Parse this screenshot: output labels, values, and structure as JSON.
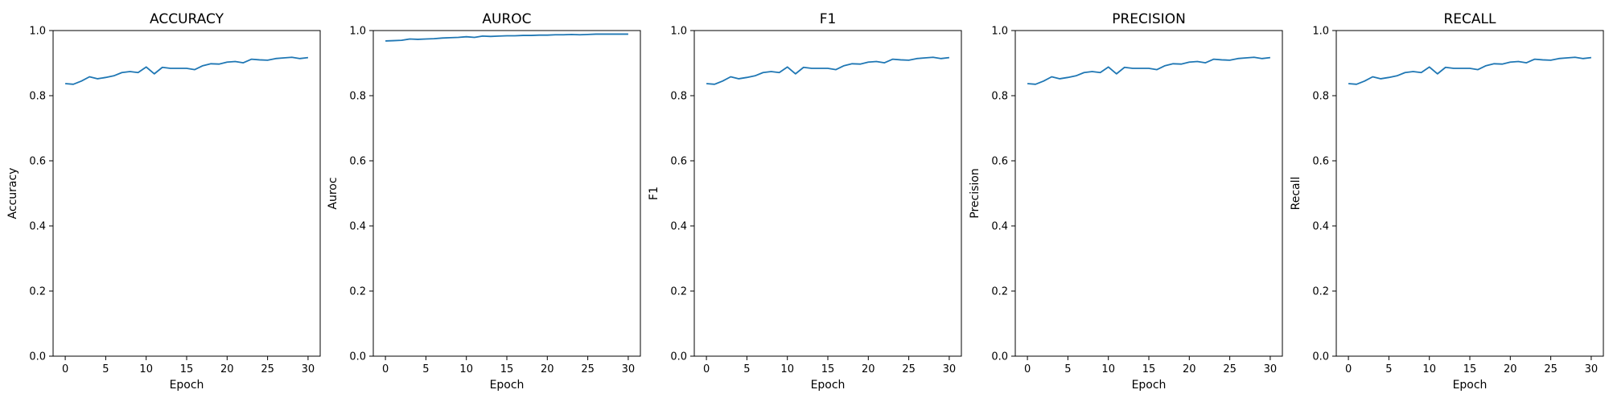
{
  "style": {
    "line_color": "#1f77b4",
    "axis_color": "#000000",
    "background": "#ffffff"
  },
  "chart_data": [
    {
      "type": "line",
      "title": "ACCURACY",
      "xlabel": "Epoch",
      "ylabel": "Accuracy",
      "xlim": [
        -1.5,
        31.5
      ],
      "ylim": [
        0.0,
        1.0
      ],
      "xticks": [
        0,
        5,
        10,
        15,
        20,
        25,
        30
      ],
      "yticks": [
        0.0,
        0.2,
        0.4,
        0.6,
        0.8,
        1.0
      ],
      "grid": false,
      "x": [
        0,
        1,
        2,
        3,
        4,
        5,
        6,
        7,
        8,
        9,
        10,
        11,
        12,
        13,
        14,
        15,
        16,
        17,
        18,
        19,
        20,
        21,
        22,
        23,
        24,
        25,
        26,
        27,
        28,
        29,
        30
      ],
      "series": [
        {
          "values": [
            0.837,
            0.835,
            0.845,
            0.858,
            0.852,
            0.856,
            0.861,
            0.871,
            0.874,
            0.871,
            0.888,
            0.867,
            0.887,
            0.884,
            0.884,
            0.884,
            0.88,
            0.892,
            0.898,
            0.897,
            0.903,
            0.905,
            0.901,
            0.912,
            0.91,
            0.909,
            0.914,
            0.916,
            0.918,
            0.914,
            0.917
          ]
        }
      ]
    },
    {
      "type": "line",
      "title": "AUROC",
      "xlabel": "Epoch",
      "ylabel": "Auroc",
      "xlim": [
        -1.5,
        31.5
      ],
      "ylim": [
        0.0,
        1.0
      ],
      "xticks": [
        0,
        5,
        10,
        15,
        20,
        25,
        30
      ],
      "yticks": [
        0.0,
        0.2,
        0.4,
        0.6,
        0.8,
        1.0
      ],
      "grid": false,
      "x": [
        0,
        1,
        2,
        3,
        4,
        5,
        6,
        7,
        8,
        9,
        10,
        11,
        12,
        13,
        14,
        15,
        16,
        17,
        18,
        19,
        20,
        21,
        22,
        23,
        24,
        25,
        26,
        27,
        28,
        29,
        30
      ],
      "series": [
        {
          "values": [
            0.968,
            0.969,
            0.97,
            0.974,
            0.973,
            0.974,
            0.975,
            0.977,
            0.978,
            0.979,
            0.981,
            0.979,
            0.983,
            0.982,
            0.983,
            0.984,
            0.984,
            0.985,
            0.985,
            0.986,
            0.986,
            0.987,
            0.987,
            0.988,
            0.987,
            0.988,
            0.989,
            0.989,
            0.989,
            0.989,
            0.989
          ]
        }
      ]
    },
    {
      "type": "line",
      "title": "F1",
      "xlabel": "Epoch",
      "ylabel": "F1",
      "xlim": [
        -1.5,
        31.5
      ],
      "ylim": [
        0.0,
        1.0
      ],
      "xticks": [
        0,
        5,
        10,
        15,
        20,
        25,
        30
      ],
      "yticks": [
        0.0,
        0.2,
        0.4,
        0.6,
        0.8,
        1.0
      ],
      "grid": false,
      "x": [
        0,
        1,
        2,
        3,
        4,
        5,
        6,
        7,
        8,
        9,
        10,
        11,
        12,
        13,
        14,
        15,
        16,
        17,
        18,
        19,
        20,
        21,
        22,
        23,
        24,
        25,
        26,
        27,
        28,
        29,
        30
      ],
      "series": [
        {
          "values": [
            0.837,
            0.835,
            0.845,
            0.858,
            0.852,
            0.856,
            0.861,
            0.871,
            0.874,
            0.871,
            0.888,
            0.867,
            0.887,
            0.884,
            0.884,
            0.884,
            0.88,
            0.892,
            0.898,
            0.897,
            0.903,
            0.905,
            0.901,
            0.912,
            0.91,
            0.909,
            0.914,
            0.916,
            0.918,
            0.914,
            0.917
          ]
        }
      ]
    },
    {
      "type": "line",
      "title": "PRECISION",
      "xlabel": "Epoch",
      "ylabel": "Precision",
      "xlim": [
        -1.5,
        31.5
      ],
      "ylim": [
        0.0,
        1.0
      ],
      "xticks": [
        0,
        5,
        10,
        15,
        20,
        25,
        30
      ],
      "yticks": [
        0.0,
        0.2,
        0.4,
        0.6,
        0.8,
        1.0
      ],
      "grid": false,
      "x": [
        0,
        1,
        2,
        3,
        4,
        5,
        6,
        7,
        8,
        9,
        10,
        11,
        12,
        13,
        14,
        15,
        16,
        17,
        18,
        19,
        20,
        21,
        22,
        23,
        24,
        25,
        26,
        27,
        28,
        29,
        30
      ],
      "series": [
        {
          "values": [
            0.837,
            0.835,
            0.845,
            0.858,
            0.852,
            0.856,
            0.861,
            0.871,
            0.874,
            0.871,
            0.888,
            0.867,
            0.887,
            0.884,
            0.884,
            0.884,
            0.88,
            0.892,
            0.898,
            0.897,
            0.903,
            0.905,
            0.901,
            0.912,
            0.91,
            0.909,
            0.914,
            0.916,
            0.918,
            0.914,
            0.917
          ]
        }
      ]
    },
    {
      "type": "line",
      "title": "RECALL",
      "xlabel": "Epoch",
      "ylabel": "Recall",
      "xlim": [
        -1.5,
        31.5
      ],
      "ylim": [
        0.0,
        1.0
      ],
      "xticks": [
        0,
        5,
        10,
        15,
        20,
        25,
        30
      ],
      "yticks": [
        0.0,
        0.2,
        0.4,
        0.6,
        0.8,
        1.0
      ],
      "grid": false,
      "x": [
        0,
        1,
        2,
        3,
        4,
        5,
        6,
        7,
        8,
        9,
        10,
        11,
        12,
        13,
        14,
        15,
        16,
        17,
        18,
        19,
        20,
        21,
        22,
        23,
        24,
        25,
        26,
        27,
        28,
        29,
        30
      ],
      "series": [
        {
          "values": [
            0.837,
            0.835,
            0.845,
            0.858,
            0.852,
            0.856,
            0.861,
            0.871,
            0.874,
            0.871,
            0.888,
            0.867,
            0.887,
            0.884,
            0.884,
            0.884,
            0.88,
            0.892,
            0.898,
            0.897,
            0.903,
            0.905,
            0.901,
            0.912,
            0.91,
            0.909,
            0.914,
            0.916,
            0.918,
            0.914,
            0.917
          ]
        }
      ]
    }
  ]
}
